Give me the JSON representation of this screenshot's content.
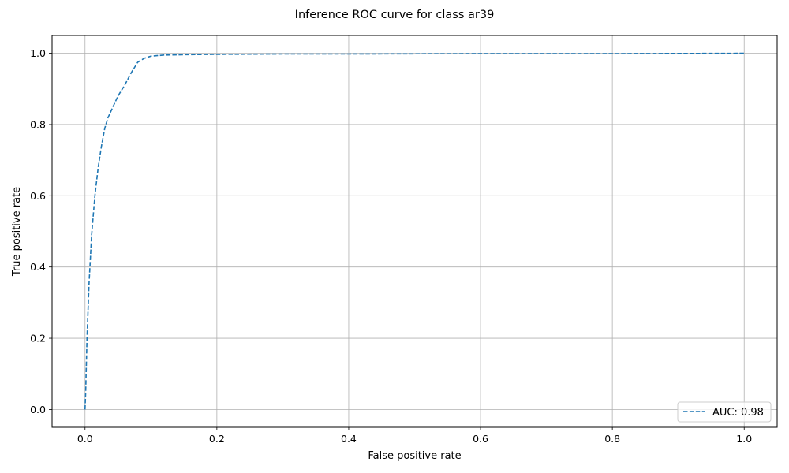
{
  "chart_data": {
    "type": "line",
    "title": "Inference ROC curve for class ar39",
    "xlabel": "False positive rate",
    "ylabel": "True positive rate",
    "xlim": [
      -0.05,
      1.05
    ],
    "ylim": [
      -0.05,
      1.05
    ],
    "xticks": [
      0.0,
      0.2,
      0.4,
      0.6,
      0.8,
      1.0
    ],
    "yticks": [
      0.0,
      0.2,
      0.4,
      0.6,
      0.8,
      1.0
    ],
    "xtick_labels": [
      "0.0",
      "0.2",
      "0.4",
      "0.6",
      "0.8",
      "1.0"
    ],
    "ytick_labels": [
      "0.0",
      "0.2",
      "0.4",
      "0.6",
      "0.8",
      "1.0"
    ],
    "grid": true,
    "legend_position": "lower-right",
    "series": [
      {
        "name": "AUC: 0.98",
        "color": "#1f77b4",
        "line_style": "dashed",
        "x": [
          0.0,
          0.001,
          0.003,
          0.006,
          0.01,
          0.015,
          0.02,
          0.025,
          0.03,
          0.035,
          0.04,
          0.05,
          0.06,
          0.07,
          0.08,
          0.09,
          0.1,
          0.12,
          0.15,
          0.2,
          0.3,
          0.4,
          0.6,
          0.8,
          1.0
        ],
        "y": [
          0.0,
          0.05,
          0.2,
          0.35,
          0.49,
          0.6,
          0.68,
          0.74,
          0.79,
          0.82,
          0.84,
          0.88,
          0.91,
          0.945,
          0.975,
          0.986,
          0.992,
          0.995,
          0.996,
          0.997,
          0.998,
          0.998,
          0.999,
          0.999,
          1.0
        ]
      }
    ]
  }
}
